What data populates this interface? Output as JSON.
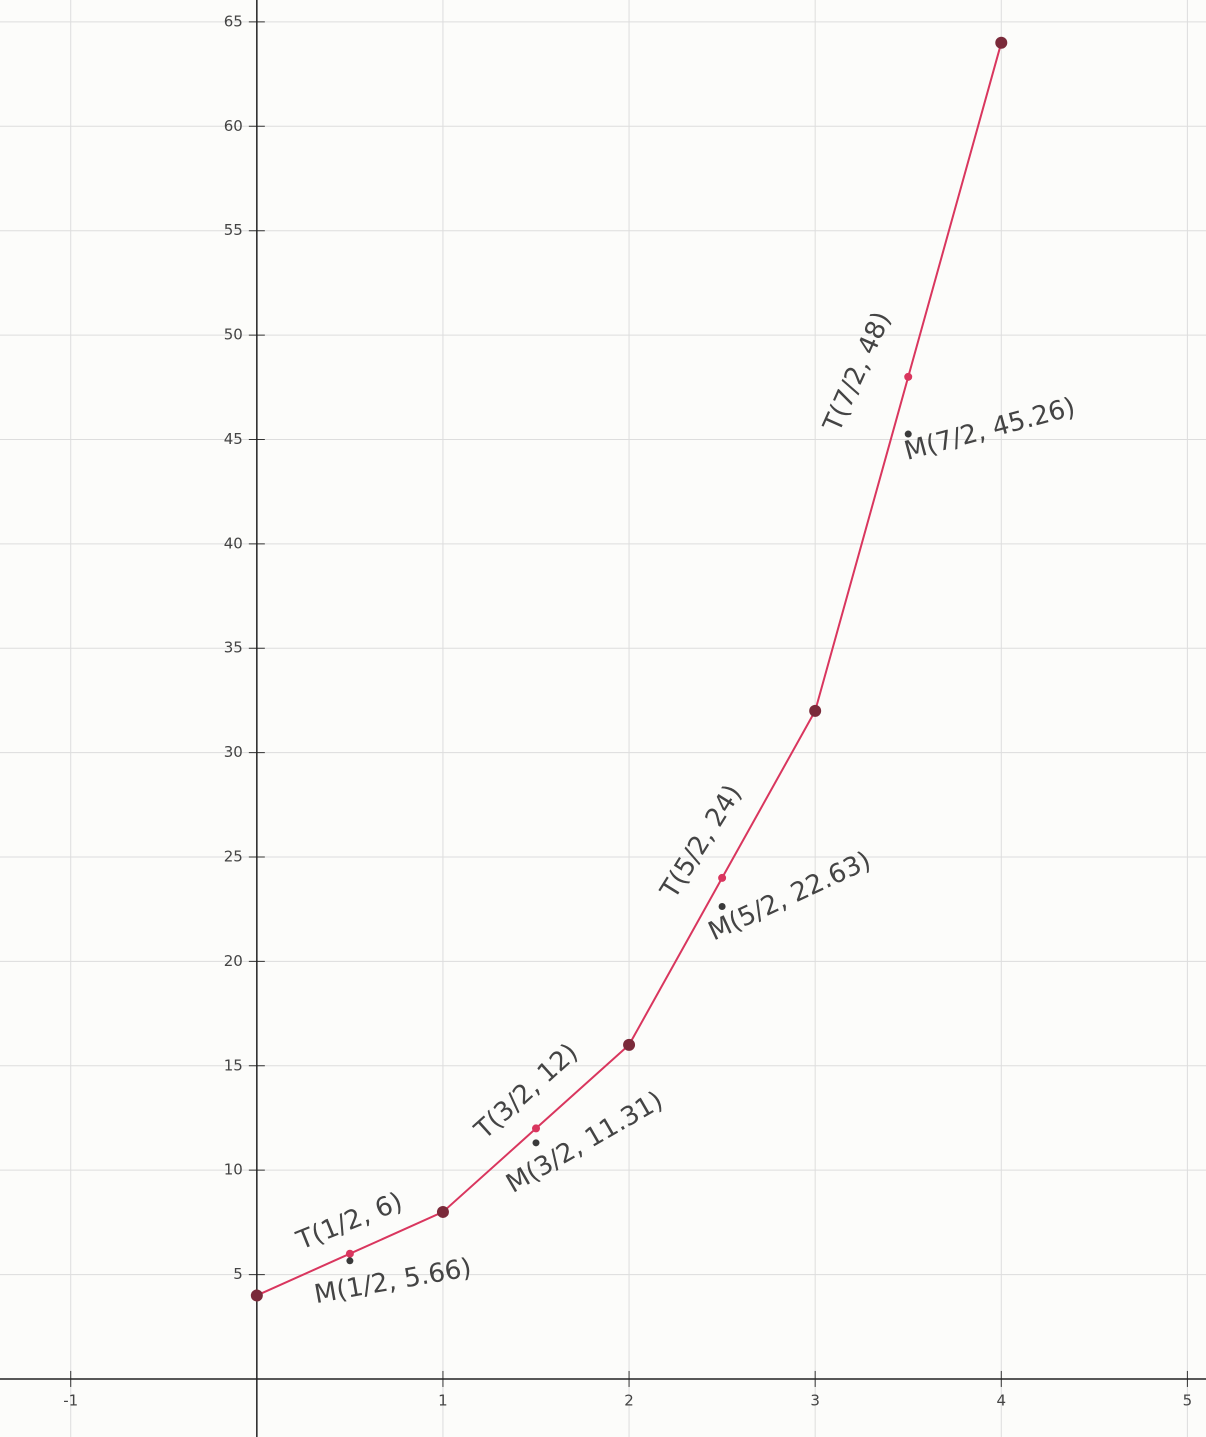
{
  "chart_data": {
    "type": "line",
    "xlim": [
      -1.38,
      5.1
    ],
    "ylim": [
      -2.78,
      66.05
    ],
    "xticks": [
      -1,
      1,
      2,
      3,
      4,
      5
    ],
    "yticks": [
      5,
      10,
      15,
      20,
      25,
      30,
      35,
      40,
      45,
      50,
      55,
      60,
      65
    ],
    "grid": true,
    "series": [
      {
        "color": "#d9365e",
        "x": [
          0,
          0.5,
          1,
          1.5,
          2,
          2.5,
          3,
          3.5,
          4
        ],
        "values": [
          4,
          6,
          8,
          12,
          16,
          24,
          32,
          48,
          64
        ]
      },
      {
        "color": "#3a3a3a",
        "x": [
          0.5,
          1.5,
          2.5,
          3.5
        ],
        "values": [
          5.66,
          11.31,
          22.63,
          45.26
        ]
      }
    ],
    "annotations": [
      {
        "text": "T(1/2, 6)",
        "color": "#d9365e"
      },
      {
        "text": "M(1/2, 5.66)",
        "color": "#3a3a3a"
      },
      {
        "text": "T(3/2, 12)",
        "color": "#d9365e"
      },
      {
        "text": "M(3/2, 11.31)",
        "color": "#3a3a3a"
      },
      {
        "text": "T(5/2, 24)",
        "color": "#d9365e"
      },
      {
        "text": "M(5/2, 22.63)",
        "color": "#3a3a3a"
      },
      {
        "text": "T(7/2, 48)",
        "color": "#d9365e"
      },
      {
        "text": "M(7/2, 45.26)",
        "color": "#3a3a3a"
      }
    ]
  }
}
